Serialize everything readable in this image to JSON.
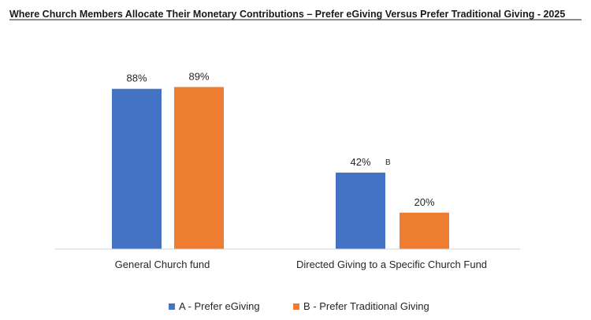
{
  "chart_data": {
    "type": "bar",
    "title": "Where Church Members Allocate Their Monetary Contributions – Prefer eGiving Versus Prefer Traditional Giving  - 2025",
    "categories": [
      "General Church fund",
      "Directed Giving to a Specific Church Fund"
    ],
    "series": [
      {
        "name": "A - Prefer eGiving",
        "values": [
          88,
          42
        ],
        "labels": [
          "88%",
          "42%"
        ],
        "color": "#4472C4"
      },
      {
        "name": "B - Prefer Traditional Giving",
        "values": [
          89,
          20
        ],
        "labels": [
          "89%",
          "20%"
        ],
        "color": "#ED7D31"
      }
    ],
    "annotations": [
      {
        "series": 0,
        "category": 1,
        "text": "B"
      }
    ],
    "ylim": [
      0,
      100
    ],
    "xlabel": "",
    "ylabel": "",
    "grid": false,
    "legend": "bottom"
  }
}
